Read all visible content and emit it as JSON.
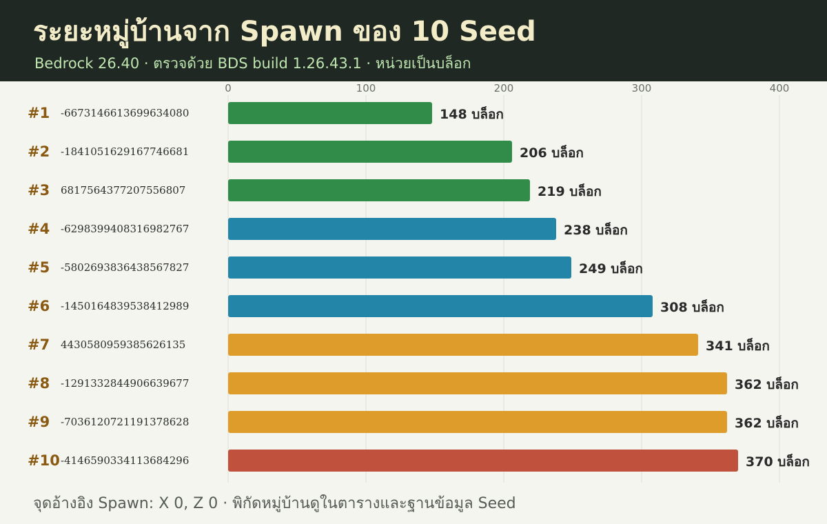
{
  "header": {
    "title": "ระยะหมู่บ้านจาก Spawn ของ 10 Seed",
    "subtitle": "Bedrock 26.40 · ตรวจด้วย BDS build 1.26.43.1 · หน่วยเป็นบล็อก"
  },
  "footer": {
    "note": "จุดอ้างอิง Spawn: X 0, Z 0 · พิกัดหมู่บ้านดูในตารางและฐานข้อมูล Seed"
  },
  "colors": {
    "header_bg": "#1f2822",
    "title": "#f3ecc8",
    "subtitle": "#bfe6b0",
    "rank": "#8a5a12",
    "tier_green": "#318c4a",
    "tier_blue": "#2385a8",
    "tier_orange": "#de9c2b",
    "tier_red": "#c0513c"
  },
  "chart_data": {
    "type": "bar",
    "orientation": "horizontal",
    "value_unit": "บล็อก",
    "xlim": [
      0,
      400
    ],
    "xticks": [
      0,
      100,
      200,
      300,
      400
    ],
    "grid": true,
    "rows": [
      {
        "rank": "#1",
        "seed": "-6673146613699634080",
        "value": 148,
        "tier": "green"
      },
      {
        "rank": "#2",
        "seed": "-1841051629167746681",
        "value": 206,
        "tier": "green"
      },
      {
        "rank": "#3",
        "seed": "6817564377207556807",
        "value": 219,
        "tier": "green"
      },
      {
        "rank": "#4",
        "seed": "-6298399408316982767",
        "value": 238,
        "tier": "blue"
      },
      {
        "rank": "#5",
        "seed": "-5802693836438567827",
        "value": 249,
        "tier": "blue"
      },
      {
        "rank": "#6",
        "seed": "-1450164839538412989",
        "value": 308,
        "tier": "blue"
      },
      {
        "rank": "#7",
        "seed": "4430580959385626135",
        "value": 341,
        "tier": "orange"
      },
      {
        "rank": "#8",
        "seed": "-1291332844906639677",
        "value": 362,
        "tier": "orange"
      },
      {
        "rank": "#9",
        "seed": "-7036120721191378628",
        "value": 362,
        "tier": "orange"
      },
      {
        "rank": "#10",
        "seed": "-4146590334113684296",
        "value": 370,
        "tier": "red"
      }
    ]
  }
}
